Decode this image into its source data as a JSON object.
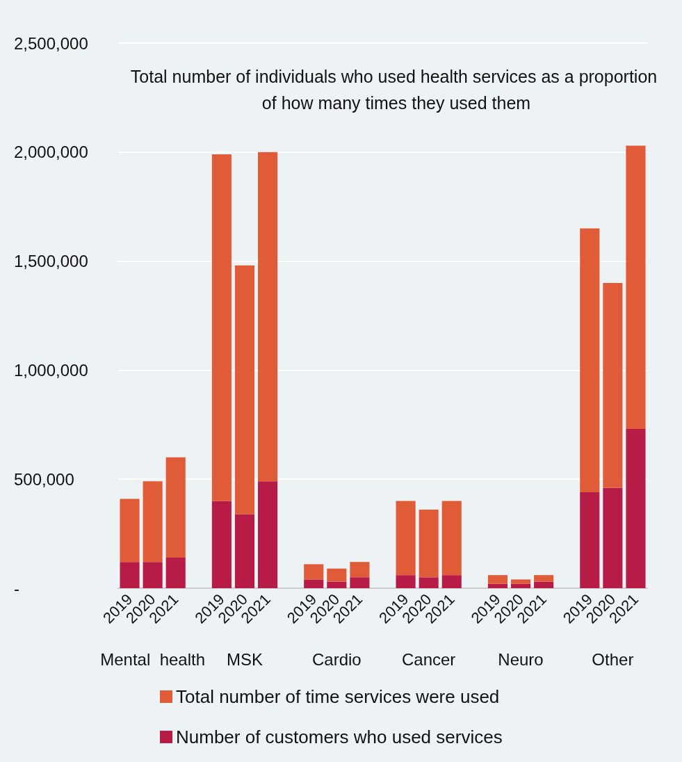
{
  "chart_data": {
    "type": "bar",
    "title": "Total number of individuals who used health services as a proportion of how many times they used them",
    "categories": [
      "2019",
      "2020",
      "2021",
      null,
      "2019",
      "2020",
      "2021",
      null,
      "2019",
      "2020",
      "2021",
      null,
      "2019",
      "2020",
      "2021",
      null,
      "2019",
      "2020",
      "2021",
      null,
      "2019",
      "2020",
      "2021"
    ],
    "stacked": true,
    "series": [
      {
        "name": "Number of customers who used services",
        "color": "#b71c47",
        "values": [
          120000,
          120000,
          140000,
          null,
          400000,
          340000,
          490000,
          null,
          40000,
          30000,
          50000,
          null,
          60000,
          50000,
          60000,
          null,
          20000,
          20000,
          30000,
          null,
          440000,
          460000,
          730000
        ]
      },
      {
        "name": "Total number of time services were used",
        "color": "#e05c38",
        "values": [
          290000,
          370000,
          460000,
          null,
          1590000,
          1140000,
          1510000,
          null,
          70000,
          60000,
          70000,
          null,
          340000,
          310000,
          340000,
          null,
          40000,
          20000,
          30000,
          null,
          1210000,
          940000,
          1300000
        ]
      }
    ],
    "ylim": [
      0,
      2500000
    ],
    "yticks": [
      {
        "value": 0,
        "label": "-"
      },
      {
        "value": 500000,
        "label": "500,000"
      },
      {
        "value": 1000000,
        "label": "1,000,000"
      },
      {
        "value": 1500000,
        "label": "1,500,000"
      },
      {
        "value": 2000000,
        "label": "2,000,000"
      },
      {
        "value": 2500000,
        "label": "2,500,000"
      }
    ],
    "grid": "y",
    "legend": "bottom",
    "annotations": [
      "Mental  health",
      "MSK",
      "Cardio",
      "Cancer",
      "Neuro",
      "Other"
    ]
  }
}
